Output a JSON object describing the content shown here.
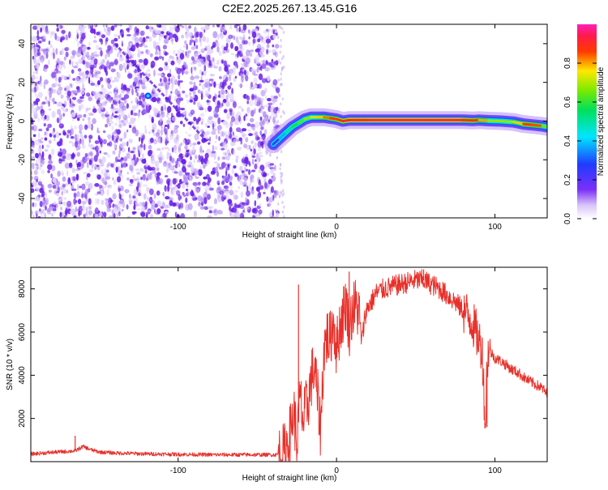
{
  "figure_title": "C2E2.2025.267.13.45.G16",
  "chart_data": [
    {
      "type": "heatmap",
      "title": "C2E2.2025.267.13.45.G16",
      "xlabel": "Height of straight line (km)",
      "ylabel": "Frequency (Hz)",
      "xlim": [
        -193,
        133
      ],
      "ylim": [
        -50,
        50
      ],
      "x_ticks": [
        -100,
        0,
        100
      ],
      "x_tick_labels": [
        "-100",
        "0",
        "100"
      ],
      "y_ticks": [
        -40,
        -20,
        0,
        20,
        40
      ],
      "y_tick_labels": [
        "-40",
        "-20",
        "0",
        "20",
        "40"
      ],
      "noise_region": {
        "x": [
          -193,
          -37
        ],
        "frequency": [
          -50,
          50
        ],
        "description": "scattered low-amplitude speckle (amplitude ~0.05-0.15)"
      },
      "diagonal_streaks": [
        {
          "points": [
            [
              -140,
              40
            ],
            [
              -80,
              -12
            ]
          ],
          "amplitude": 0.12
        },
        {
          "points": [
            [
              -119,
              13
            ],
            [
              -119,
              13
            ]
          ],
          "amplitude": 0.3
        }
      ],
      "ridge": {
        "x": [
          -40,
          -36,
          -32,
          -28,
          -24,
          -20,
          -16,
          -12,
          -8,
          -4,
          0,
          4,
          8,
          20,
          40,
          60,
          80,
          86,
          90,
          96,
          104,
          112,
          118,
          124,
          130,
          133
        ],
        "frequency": [
          -12,
          -9,
          -6,
          -3,
          -1,
          1,
          2,
          2,
          2,
          1.5,
          1,
          0,
          0.5,
          0.5,
          0.5,
          0.5,
          0.5,
          0.3,
          0.5,
          0.2,
          0,
          -0.5,
          -1.5,
          -2,
          -2.5,
          -3
        ],
        "amplitude": [
          0.15,
          0.3,
          0.45,
          0.55,
          0.6,
          0.65,
          0.7,
          0.75,
          0.8,
          0.85,
          0.88,
          0.9,
          0.93,
          0.95,
          0.95,
          0.95,
          0.95,
          0.85,
          0.9,
          0.7,
          0.65,
          0.7,
          0.85,
          0.9,
          0.8,
          0.5
        ]
      },
      "colorbar": {
        "label": "Normalized spectral amplitude",
        "range": [
          0,
          1
        ],
        "ticks": [
          0,
          0.2,
          0.4,
          0.6,
          0.8
        ],
        "tick_labels": [
          "0.0",
          "0.2",
          "0.4",
          "0.6",
          "0.8"
        ],
        "colormap": "white-purple-blue-cyan-green-yellow-red-magenta"
      },
      "grid": false,
      "legend": "none"
    },
    {
      "type": "line",
      "xlabel": "Height of straight line (km)",
      "ylabel": "SNR (10 * v/v)",
      "xlim": [
        -193,
        133
      ],
      "ylim": [
        0,
        9000
      ],
      "x_ticks": [
        -100,
        0,
        100
      ],
      "x_tick_labels": [
        "-100",
        "0",
        "100"
      ],
      "y_ticks": [
        2000,
        4000,
        6000,
        8000
      ],
      "y_tick_labels": [
        "2000",
        "4000",
        "6000",
        "8000"
      ],
      "series": [
        {
          "color": "#e8302a",
          "x": [
            -193,
            -185,
            -175,
            -165,
            -160,
            -155,
            -150,
            -140,
            -130,
            -120,
            -110,
            -100,
            -90,
            -80,
            -70,
            -60,
            -50,
            -40,
            -35,
            -33,
            -31,
            -29,
            -27,
            -25,
            -23,
            -21,
            -20,
            -18,
            -16,
            -14,
            -12,
            -10,
            -8,
            -6,
            -4,
            -2,
            0,
            2,
            4,
            6,
            8,
            10,
            12,
            14,
            16,
            18,
            20,
            22,
            25,
            30,
            35,
            40,
            45,
            50,
            55,
            60,
            65,
            70,
            75,
            80,
            85,
            88,
            90,
            92,
            94,
            95,
            96,
            98,
            100,
            105,
            110,
            115,
            120,
            125,
            130,
            133
          ],
          "y": [
            350,
            400,
            450,
            500,
            700,
            550,
            450,
            400,
            380,
            360,
            350,
            340,
            330,
            320,
            320,
            320,
            320,
            320,
            330,
            400,
            900,
            1400,
            2400,
            800,
            3000,
            1800,
            2200,
            2800,
            3800,
            4400,
            3000,
            1500,
            5200,
            5800,
            5600,
            6600,
            5200,
            6200,
            6800,
            7400,
            6200,
            7000,
            7200,
            7000,
            5500,
            6800,
            7200,
            7400,
            7800,
            8000,
            8100,
            8200,
            8300,
            8400,
            8400,
            8200,
            8000,
            7700,
            7400,
            7000,
            6600,
            6000,
            5600,
            5200,
            1500,
            4500,
            5200,
            5000,
            4800,
            4600,
            4300,
            4100,
            3800,
            3600,
            3400,
            3100
          ],
          "features": [
            {
              "x": -165,
              "y": 1200
            },
            {
              "x": -24,
              "y": 8200
            },
            {
              "x": 8,
              "y": 8800
            },
            {
              "x": 55,
              "y": 8900
            },
            {
              "x": 95,
              "y": 1600
            }
          ]
        }
      ],
      "grid": false,
      "legend": "none"
    }
  ]
}
